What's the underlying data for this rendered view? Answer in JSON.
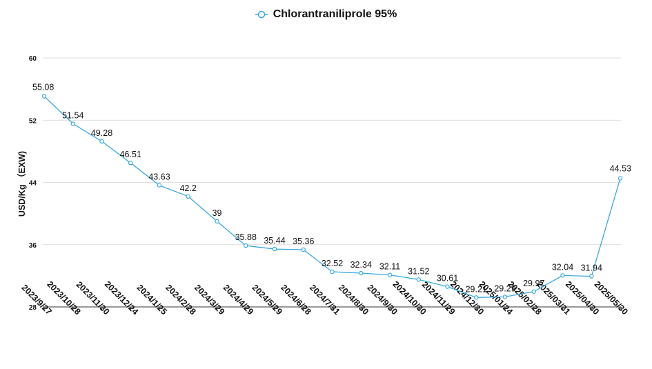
{
  "chart_data": {
    "type": "line",
    "title": "",
    "xlabel": "",
    "ylabel": "USD/Kg （EXW)",
    "ylim": [
      28,
      60
    ],
    "yticks": [
      28,
      36,
      44,
      52,
      60
    ],
    "grid": true,
    "legend_position": "top-center",
    "series": [
      {
        "name": "Chlorantraniliprole 95%",
        "color": "#35a9e0",
        "values": [
          55.08,
          51.54,
          49.28,
          46.51,
          43.63,
          42.2,
          39,
          35.88,
          35.44,
          35.36,
          32.52,
          32.34,
          32.11,
          31.52,
          30.61,
          29.21,
          29.29,
          29.97,
          32.04,
          31.94,
          44.53
        ],
        "labels": [
          "55.08",
          "51.54",
          "49.28",
          "46.51",
          "43.63",
          "42.2",
          "39",
          "35.88",
          "35.44",
          "35.36",
          "32.52",
          "32.34",
          "32.11",
          "31.52",
          "30.61",
          "29.21",
          "29.29",
          "29.97",
          "32.04",
          "31.94",
          "44.53"
        ]
      }
    ],
    "categories": [
      "2023/9/27",
      "2023/10/28",
      "2023/11/30",
      "2023/12/24",
      "2024/1/25",
      "2024/2/28",
      "2024/3/29",
      "2024/4/29",
      "2024/5/29",
      "2024/6/28",
      "2024/7/31",
      "2024/8/30",
      "2024/9/30",
      "2024/10/30",
      "2024/11/29",
      "2024/12/30",
      "2025/01/24",
      "2025/02/28",
      "2025/03/31",
      "2025/04/30",
      "2025/05/30"
    ]
  }
}
